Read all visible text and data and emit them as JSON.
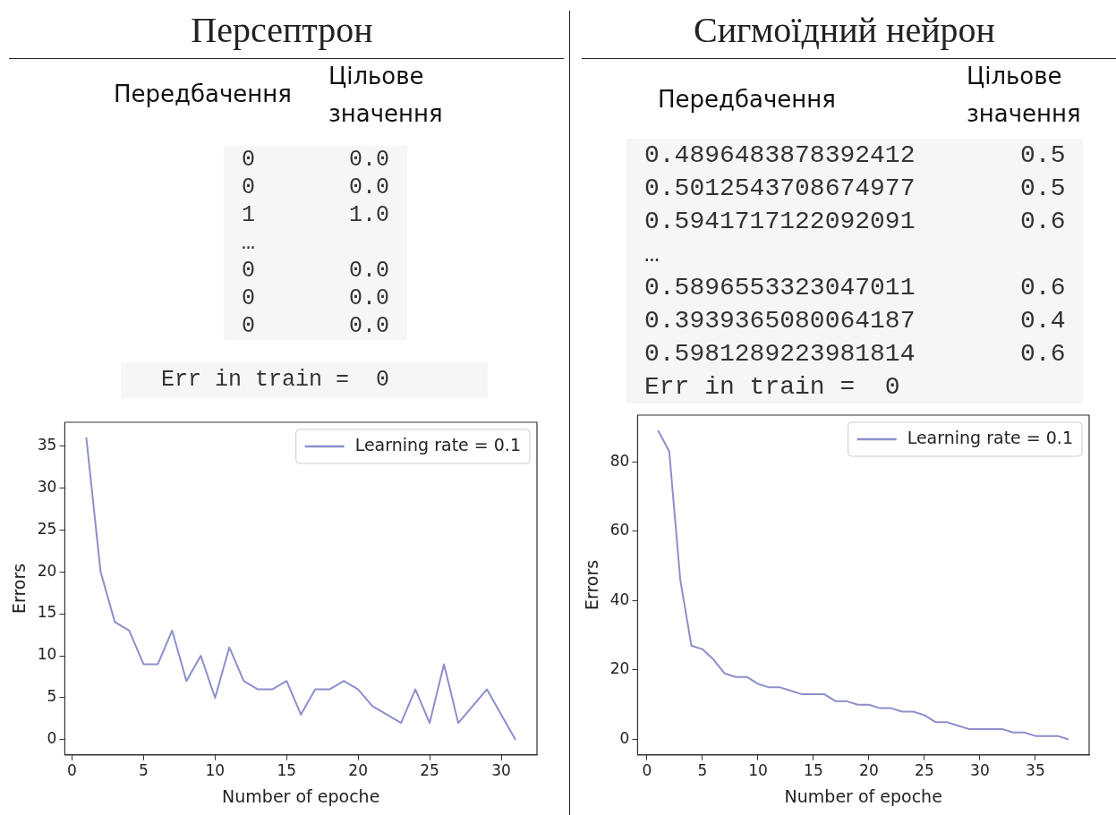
{
  "chart_data": [
    {
      "type": "other",
      "title": "Персептрон",
      "annotations": [
        "Передбачення",
        "Цільове значення",
        "0       0.0",
        "0       0.0",
        "1       1.0",
        "…",
        "0       0.0",
        "0       0.0",
        "0       0.0",
        "Err in train =  0"
      ]
    },
    {
      "type": "line",
      "xlabel": "Number of epoche",
      "ylabel": "Errors",
      "legend": "top right",
      "xlim": [
        -0.5,
        32.5
      ],
      "xticks": [
        0,
        5,
        10,
        15,
        20,
        25,
        30
      ],
      "ylim": [
        -1.8,
        37.8
      ],
      "yticks": [
        0,
        5,
        10,
        15,
        20,
        25,
        30,
        35
      ],
      "x": [
        1,
        2,
        3,
        4,
        5,
        6,
        7,
        8,
        9,
        10,
        11,
        12,
        13,
        14,
        15,
        16,
        17,
        18,
        19,
        20,
        21,
        22,
        23,
        24,
        25,
        26,
        27,
        28,
        29,
        30,
        31
      ],
      "series": [
        {
          "name": "Learning rate = 0.1",
          "color": "#8c8fcc",
          "values": [
            36,
            20,
            14,
            13,
            9,
            9,
            13,
            7,
            10,
            5,
            11,
            7,
            6,
            6,
            7,
            3,
            6,
            6,
            7,
            6,
            4,
            3,
            2,
            6,
            2,
            9,
            2,
            4,
            6,
            3,
            0
          ]
        }
      ]
    },
    {
      "type": "other",
      "title": "Сигмоїдний нейрон",
      "annotations": [
        "Передбачення",
        "Цільове значення",
        "0.4896483878392412       0.5",
        "0.5012543708674977       0.5",
        "0.5941717122092091       0.6",
        "…",
        "0.5896553323047011       0.6",
        "0.3939365080064187       0.4",
        "0.5981289223981814       0.6",
        "Err in train =  0"
      ]
    },
    {
      "type": "line",
      "xlabel": "Number of epoche",
      "ylabel": "Errors",
      "legend": "top right",
      "xlim": [
        -0.85,
        39.85
      ],
      "xticks": [
        0,
        5,
        10,
        15,
        20,
        25,
        30,
        35
      ],
      "ylim": [
        -4.45,
        93.45
      ],
      "yticks": [
        0,
        20,
        40,
        60,
        80
      ],
      "x": [
        1,
        2,
        3,
        4,
        5,
        6,
        7,
        8,
        9,
        10,
        11,
        12,
        13,
        14,
        15,
        16,
        17,
        18,
        19,
        20,
        21,
        22,
        23,
        24,
        25,
        26,
        27,
        28,
        29,
        30,
        31,
        32,
        33,
        34,
        35,
        36,
        37,
        38
      ],
      "series": [
        {
          "name": "Learning rate = 0.1",
          "color": "#8c8fcc",
          "values": [
            89,
            83,
            46,
            27,
            26,
            23,
            19,
            18,
            18,
            16,
            15,
            15,
            14,
            13,
            13,
            13,
            11,
            11,
            10,
            10,
            9,
            9,
            8,
            8,
            7,
            5,
            5,
            4,
            3,
            3,
            3,
            3,
            2,
            2,
            1,
            1,
            1,
            0
          ]
        }
      ]
    }
  ]
}
